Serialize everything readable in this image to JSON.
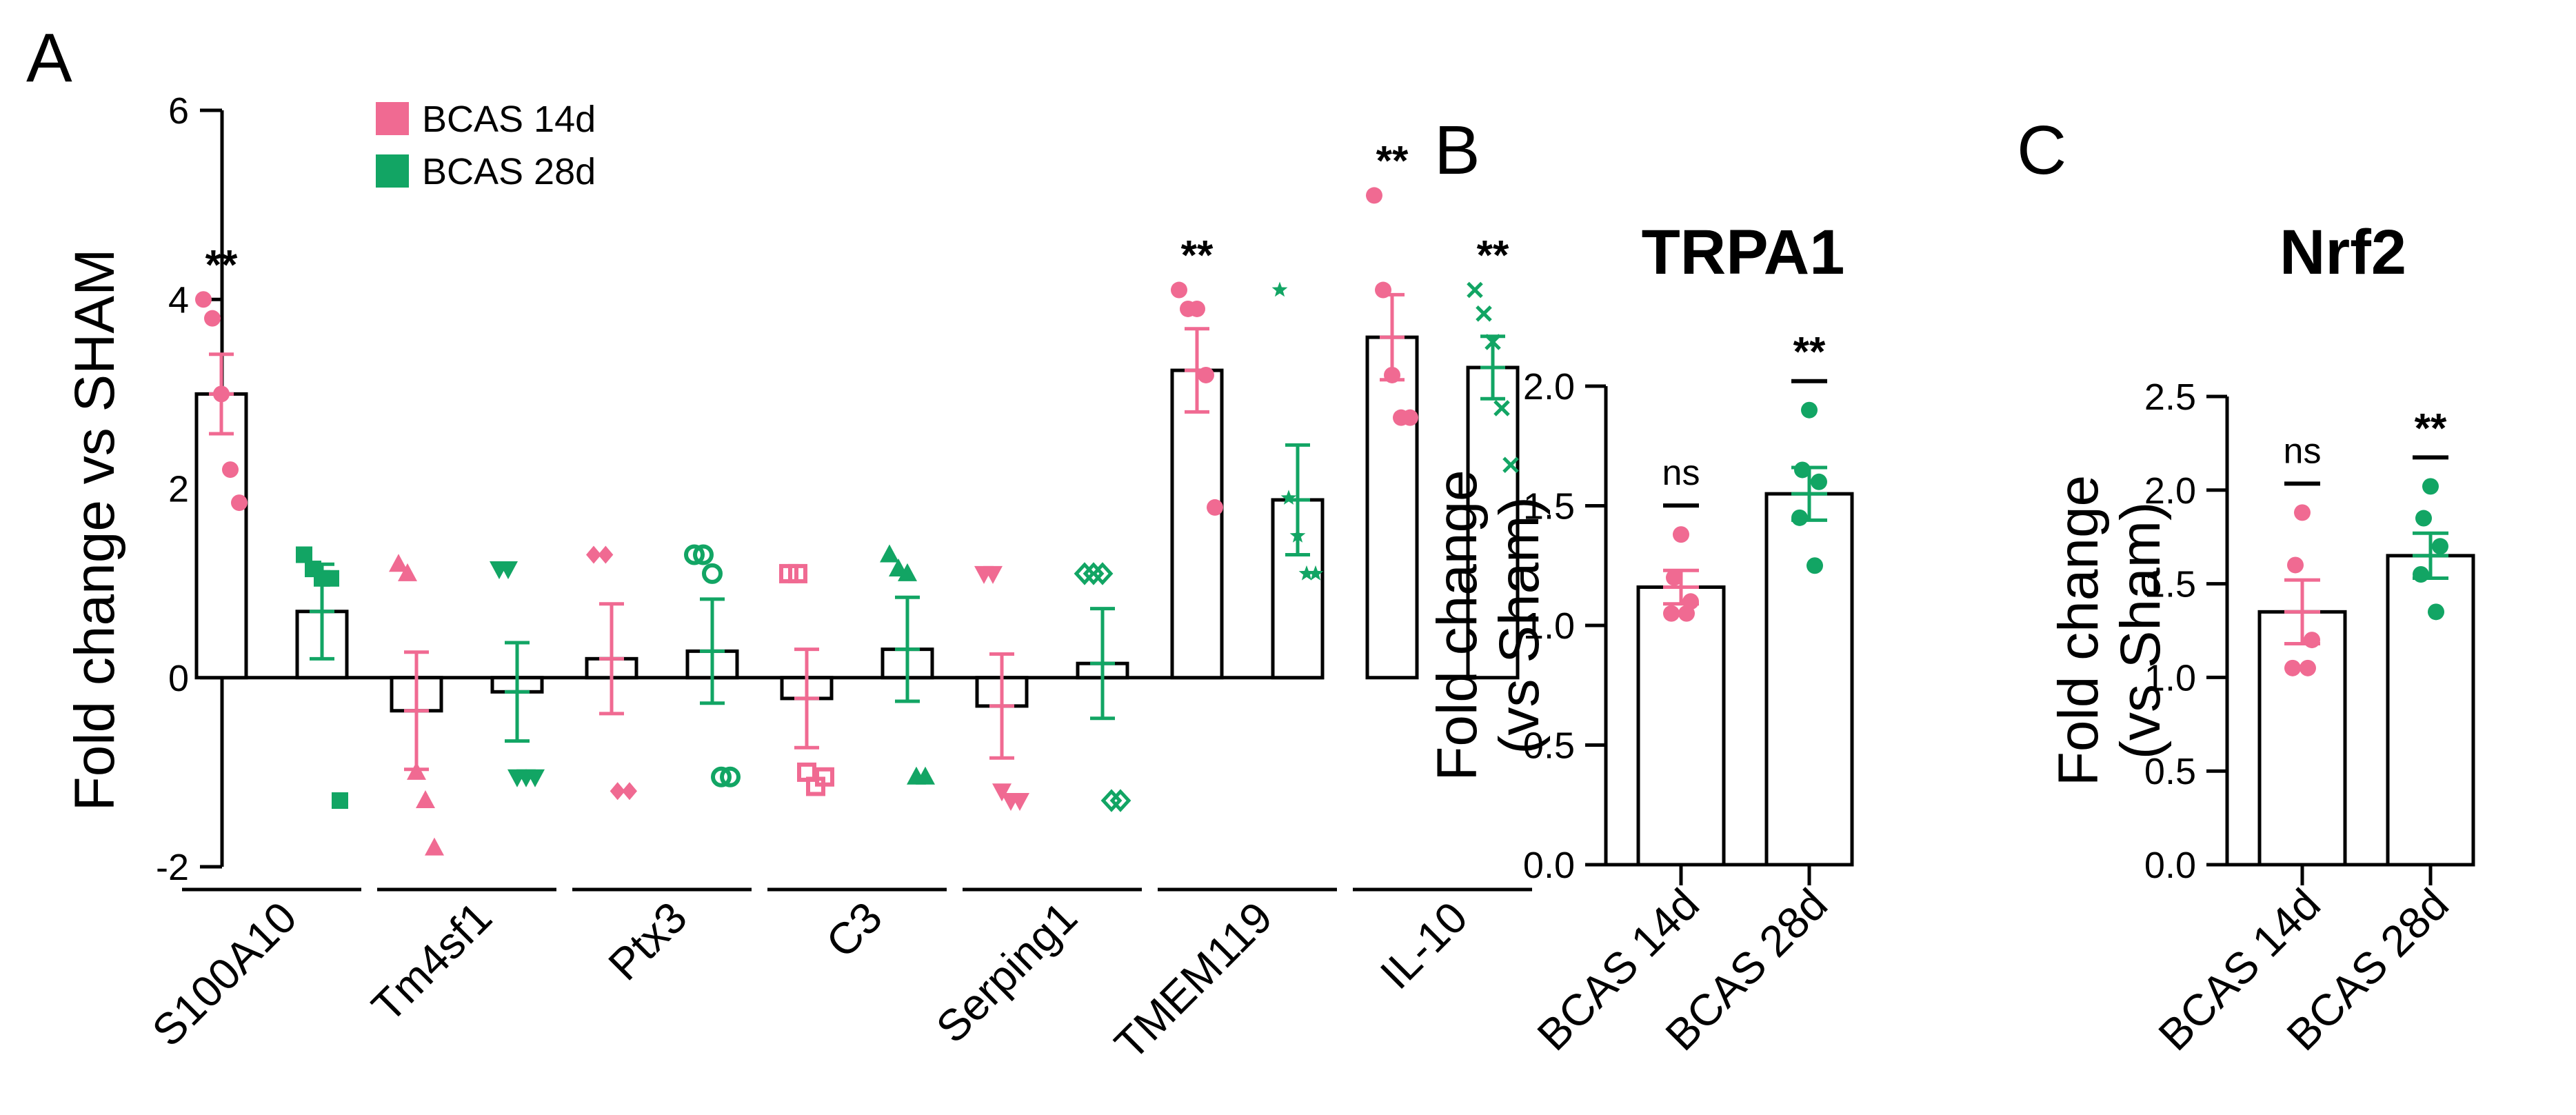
{
  "colors": {
    "bcas14": "#f06a92",
    "bcas28": "#12a564",
    "axis": "#000000"
  },
  "chart_data": [
    {
      "id": "A",
      "panel_label": "A",
      "type": "bar",
      "title": "",
      "ylabel": "Fold change vs SHAM",
      "ylim": [
        -2,
        6
      ],
      "yticks": [
        -2,
        0,
        2,
        4,
        6
      ],
      "legend": {
        "placement": "top-center",
        "entries": [
          {
            "name": "BCAS 14d",
            "color": "#f06a92"
          },
          {
            "name": "BCAS 28d",
            "color": "#12a564"
          }
        ]
      },
      "categories": [
        "S100A10",
        "Tm4sf1",
        "Ptx3",
        "C3",
        "Serping1",
        "TMEM119",
        "IL-10"
      ],
      "series": [
        {
          "name": "BCAS 14d",
          "color": "#f06a92",
          "values": [
            3.0,
            -0.35,
            0.2,
            -0.22,
            -0.3,
            3.25,
            3.6
          ],
          "sem": [
            0.42,
            0.62,
            0.58,
            0.52,
            0.55,
            0.44,
            0.45
          ],
          "sig": [
            "**",
            "",
            "",
            "",
            "",
            "**",
            "**"
          ],
          "markers": [
            "circle",
            "triangle",
            "diamond",
            "square-open",
            "triangle-down",
            "circle",
            "circle"
          ],
          "points": [
            [
              4.0,
              3.8,
              3.0,
              2.2,
              1.85
            ],
            [
              1.2,
              1.1,
              -1.0,
              -1.3,
              -1.8
            ],
            [
              1.3,
              1.3,
              -1.2,
              -1.2
            ],
            [
              1.1,
              1.1,
              -1.0,
              -1.15,
              -1.05
            ],
            [
              1.1,
              1.1,
              -1.2,
              -1.3,
              -1.3
            ],
            [
              4.1,
              3.9,
              3.9,
              3.2,
              1.8
            ],
            [
              5.1,
              4.1,
              3.2,
              2.75,
              2.75
            ]
          ]
        },
        {
          "name": "BCAS 28d",
          "color": "#12a564",
          "values": [
            0.7,
            -0.15,
            0.28,
            0.3,
            0.15,
            1.88,
            3.28
          ],
          "sem": [
            0.5,
            0.52,
            0.55,
            0.55,
            0.58,
            0.58,
            0.33
          ],
          "sig": [
            "",
            "",
            "",
            "",
            "",
            "",
            "**"
          ],
          "markers": [
            "square",
            "triangle-down",
            "circle-open",
            "triangle",
            "diamond-open",
            "star",
            "cross"
          ],
          "points": [
            [
              1.3,
              1.15,
              1.05,
              1.05,
              -1.3
            ],
            [
              1.15,
              1.15,
              -1.05,
              -1.05,
              -1.05
            ],
            [
              1.3,
              1.3,
              1.1,
              -1.05,
              -1.05
            ],
            [
              1.3,
              1.15,
              1.1,
              -1.05,
              -1.05
            ],
            [
              1.1,
              1.1,
              1.1,
              -1.3,
              -1.3
            ],
            [
              4.1,
              1.9,
              1.5,
              1.1,
              1.1
            ],
            [
              4.1,
              3.85,
              3.55,
              2.85,
              2.25
            ]
          ]
        }
      ]
    },
    {
      "id": "B",
      "panel_label": "B",
      "type": "bar",
      "title": "TRPA1",
      "ylabel_lines": [
        "Fold change",
        "(vs Sham)"
      ],
      "ylim": [
        0,
        2.0
      ],
      "yticks": [
        "0.0",
        "0.5",
        "1.0",
        "1.5",
        "2.0"
      ],
      "categories": [
        "BCAS 14d",
        "BCAS 28d"
      ],
      "colors": [
        "#f06a92",
        "#12a564"
      ],
      "values": [
        1.16,
        1.55
      ],
      "sem": [
        0.07,
        0.11
      ],
      "sig": [
        "ns",
        "**"
      ],
      "points": [
        [
          1.38,
          1.2,
          1.1,
          1.05,
          1.05
        ],
        [
          1.9,
          1.65,
          1.6,
          1.45,
          1.25
        ]
      ]
    },
    {
      "id": "C",
      "panel_label": "C",
      "type": "bar",
      "title": "Nrf2",
      "ylabel_lines": [
        "Fold change",
        "(vs Sham)"
      ],
      "ylim": [
        0,
        2.5
      ],
      "yticks": [
        "0.0",
        "0.5",
        "1.0",
        "1.5",
        "2.0",
        "2.5"
      ],
      "categories": [
        "BCAS 14d",
        "BCAS 28d"
      ],
      "colors": [
        "#f06a92",
        "#12a564"
      ],
      "values": [
        1.35,
        1.65
      ],
      "sem": [
        0.17,
        0.12
      ],
      "sig": [
        "ns",
        "**"
      ],
      "points": [
        [
          1.88,
          1.6,
          1.2,
          1.05,
          1.05
        ],
        [
          2.02,
          1.85,
          1.7,
          1.55,
          1.35
        ]
      ]
    }
  ]
}
